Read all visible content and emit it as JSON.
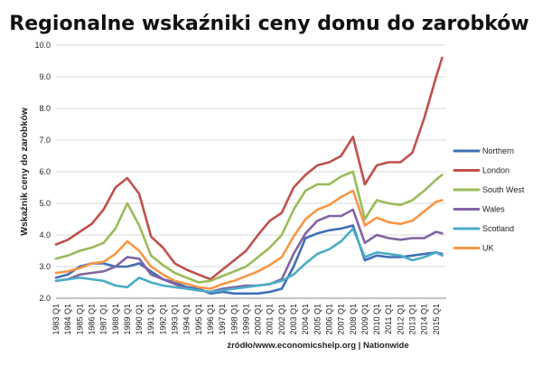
{
  "chart_data": {
    "type": "line",
    "title": "Regionalne wskaźniki ceny domu do zarobków",
    "ylabel": "Wskaźnik ceny do zarobków",
    "xlabel": "",
    "source": "źródło/www.economicshelp.org | Nationwide",
    "ylim": [
      2.0,
      10.0
    ],
    "yticks": [
      "2.0",
      "3.0",
      "4.0",
      "5.0",
      "6.0",
      "7.0",
      "8.0",
      "9.0",
      "10.0"
    ],
    "grid": "horizontal",
    "legend": "right",
    "x_categories": [
      "1983 Q1",
      "1984 Q1",
      "1985 Q1",
      "1986 Q1",
      "1987 Q1",
      "1988 Q1",
      "1989 Q1",
      "1990 Q1",
      "1991 Q1",
      "1992 Q1",
      "1993 Q1",
      "1994 Q1",
      "1995 Q1",
      "1996 Q1",
      "1997 Q1",
      "1998 Q1",
      "1999 Q1",
      "2000 Q1",
      "2001 Q1",
      "2002 Q1",
      "2003 Q1",
      "2004 Q1",
      "2005 Q1",
      "2006 Q1",
      "2007 Q1",
      "2008 Q1",
      "2009 Q1",
      "2010 Q1",
      "2011 Q1",
      "2012 Q1",
      "2013 Q1",
      "2014 Q1",
      "2015 Q1"
    ],
    "x": [
      1983.0,
      1984.0,
      1985.0,
      1986.0,
      1987.0,
      1988.0,
      1989.0,
      1990.0,
      1991.0,
      1992.0,
      1993.0,
      1994.0,
      1995.0,
      1996.0,
      1997.0,
      1998.0,
      1999.0,
      2000.0,
      2001.0,
      2002.0,
      2003.0,
      2004.0,
      2005.0,
      2006.0,
      2007.0,
      2008.0,
      2009.0,
      2010.0,
      2011.0,
      2012.0,
      2013.0,
      2014.0,
      2015.0,
      2015.5
    ],
    "series": [
      {
        "name": "Northern",
        "color": "#3f6fb5",
        "values": [
          2.65,
          2.75,
          3.0,
          3.1,
          3.1,
          3.0,
          3.0,
          3.1,
          2.85,
          2.6,
          2.5,
          2.35,
          2.3,
          2.15,
          2.2,
          2.15,
          2.15,
          2.15,
          2.2,
          2.3,
          3.0,
          3.9,
          4.05,
          4.15,
          4.2,
          4.3,
          3.2,
          3.35,
          3.3,
          3.3,
          3.35,
          3.4,
          3.45,
          3.4
        ]
      },
      {
        "name": "London",
        "color": "#c0504d",
        "values": [
          3.7,
          3.85,
          4.1,
          4.35,
          4.8,
          5.5,
          5.8,
          5.3,
          3.95,
          3.6,
          3.1,
          2.9,
          2.75,
          2.6,
          2.9,
          3.2,
          3.5,
          4.0,
          4.45,
          4.7,
          5.5,
          5.9,
          6.2,
          6.3,
          6.5,
          7.1,
          5.6,
          6.2,
          6.3,
          6.3,
          6.6,
          7.7,
          9.0,
          9.6
        ]
      },
      {
        "name": "South West",
        "color": "#9bbb59",
        "values": [
          3.25,
          3.35,
          3.5,
          3.6,
          3.75,
          4.2,
          5.0,
          4.3,
          3.35,
          3.05,
          2.8,
          2.65,
          2.5,
          2.55,
          2.7,
          2.85,
          3.0,
          3.3,
          3.6,
          4.0,
          4.8,
          5.4,
          5.6,
          5.6,
          5.85,
          6.0,
          4.5,
          5.1,
          5.0,
          4.95,
          5.1,
          5.4,
          5.75,
          5.9
        ]
      },
      {
        "name": "Wales",
        "color": "#8064a2",
        "values": [
          2.55,
          2.6,
          2.75,
          2.8,
          2.85,
          3.0,
          3.3,
          3.25,
          2.75,
          2.6,
          2.45,
          2.3,
          2.25,
          2.2,
          2.3,
          2.35,
          2.4,
          2.4,
          2.45,
          2.6,
          3.4,
          4.05,
          4.45,
          4.6,
          4.6,
          4.8,
          3.75,
          4.0,
          3.9,
          3.85,
          3.9,
          3.9,
          4.1,
          4.05
        ]
      },
      {
        "name": "Scotland",
        "color": "#4bacc6",
        "values": [
          2.55,
          2.6,
          2.65,
          2.6,
          2.55,
          2.4,
          2.35,
          2.65,
          2.5,
          2.4,
          2.35,
          2.3,
          2.25,
          2.2,
          2.25,
          2.3,
          2.35,
          2.4,
          2.45,
          2.55,
          2.75,
          3.1,
          3.4,
          3.55,
          3.8,
          4.2,
          3.3,
          3.45,
          3.4,
          3.35,
          3.2,
          3.3,
          3.45,
          3.35
        ]
      },
      {
        "name": "UK",
        "color": "#f79646",
        "values": [
          2.8,
          2.85,
          2.95,
          3.1,
          3.15,
          3.4,
          3.8,
          3.5,
          3.0,
          2.75,
          2.55,
          2.45,
          2.35,
          2.3,
          2.45,
          2.55,
          2.7,
          2.85,
          3.05,
          3.3,
          3.95,
          4.5,
          4.8,
          4.95,
          5.2,
          5.4,
          4.3,
          4.55,
          4.4,
          4.35,
          4.45,
          4.75,
          5.05,
          5.1
        ]
      }
    ]
  }
}
